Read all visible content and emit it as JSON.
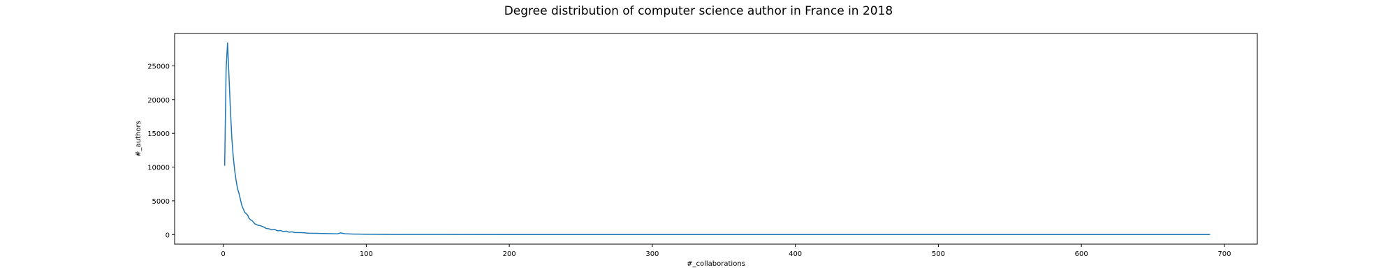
{
  "chart_data": {
    "type": "line",
    "title": "Degree distribution of computer science author in France in 2018",
    "xlabel": "#_collaborations",
    "ylabel": "#_authors",
    "xlim": [
      -34,
      723
    ],
    "ylim": [
      -1420,
      29800
    ],
    "x_ticks": [
      0,
      100,
      200,
      300,
      400,
      500,
      600,
      700
    ],
    "y_ticks": [
      0,
      5000,
      10000,
      15000,
      20000,
      25000
    ],
    "grid": false,
    "line_color": "#1f77b4",
    "series": [
      {
        "x": [
          1,
          2,
          3,
          4,
          5,
          6,
          7,
          8,
          9,
          10,
          11,
          12,
          13,
          14,
          15,
          16,
          17,
          18,
          19,
          20,
          22,
          24,
          26,
          28,
          30,
          32,
          34,
          36,
          38,
          40,
          42,
          44,
          46,
          48,
          50,
          55,
          60,
          65,
          70,
          75,
          80,
          82,
          85,
          90,
          95,
          100,
          110,
          120,
          130,
          150,
          200,
          300,
          400,
          500,
          600,
          690
        ],
        "values": [
          10200,
          24500,
          28400,
          23500,
          18500,
          14300,
          11500,
          9500,
          8000,
          6800,
          6100,
          5200,
          4300,
          3800,
          3300,
          3100,
          2900,
          2400,
          2200,
          2100,
          1600,
          1400,
          1300,
          1150,
          900,
          850,
          700,
          750,
          550,
          600,
          450,
          500,
          350,
          400,
          300,
          280,
          200,
          180,
          150,
          130,
          100,
          250,
          120,
          80,
          60,
          40,
          30,
          20,
          15,
          10,
          5,
          3,
          2,
          1,
          1,
          1
        ]
      }
    ]
  }
}
